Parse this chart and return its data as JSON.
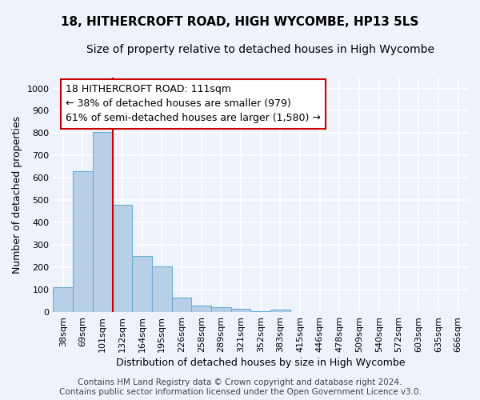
{
  "title": "18, HITHERCROFT ROAD, HIGH WYCOMBE, HP13 5LS",
  "subtitle": "Size of property relative to detached houses in High Wycombe",
  "xlabel": "Distribution of detached houses by size in High Wycombe",
  "ylabel": "Number of detached properties",
  "bar_labels": [
    "38sqm",
    "69sqm",
    "101sqm",
    "132sqm",
    "164sqm",
    "195sqm",
    "226sqm",
    "258sqm",
    "289sqm",
    "321sqm",
    "352sqm",
    "383sqm",
    "415sqm",
    "446sqm",
    "478sqm",
    "509sqm",
    "540sqm",
    "572sqm",
    "603sqm",
    "635sqm",
    "666sqm"
  ],
  "bar_heights": [
    110,
    630,
    805,
    480,
    250,
    205,
    65,
    28,
    20,
    13,
    5,
    10,
    0,
    0,
    0,
    0,
    0,
    0,
    0,
    0,
    0
  ],
  "bar_color": "#b8cfe8",
  "bar_edge_color": "#6baed6",
  "vline_x": 2.5,
  "vline_color": "#cc0000",
  "annotation_text": "18 HITHERCROFT ROAD: 111sqm\n← 38% of detached houses are smaller (979)\n61% of semi-detached houses are larger (1,580) →",
  "annotation_box_facecolor": "#ffffff",
  "annotation_box_edgecolor": "#cc0000",
  "ylim": [
    0,
    1050
  ],
  "yticks": [
    0,
    100,
    200,
    300,
    400,
    500,
    600,
    700,
    800,
    900,
    1000
  ],
  "background_color": "#eef2fa",
  "grid_color": "#ffffff",
  "footer": "Contains HM Land Registry data © Crown copyright and database right 2024.\nContains public sector information licensed under the Open Government Licence v3.0.",
  "title_fontsize": 11,
  "subtitle_fontsize": 10,
  "xlabel_fontsize": 9,
  "ylabel_fontsize": 9,
  "tick_fontsize": 8,
  "annotation_fontsize": 9,
  "footer_fontsize": 7.5
}
